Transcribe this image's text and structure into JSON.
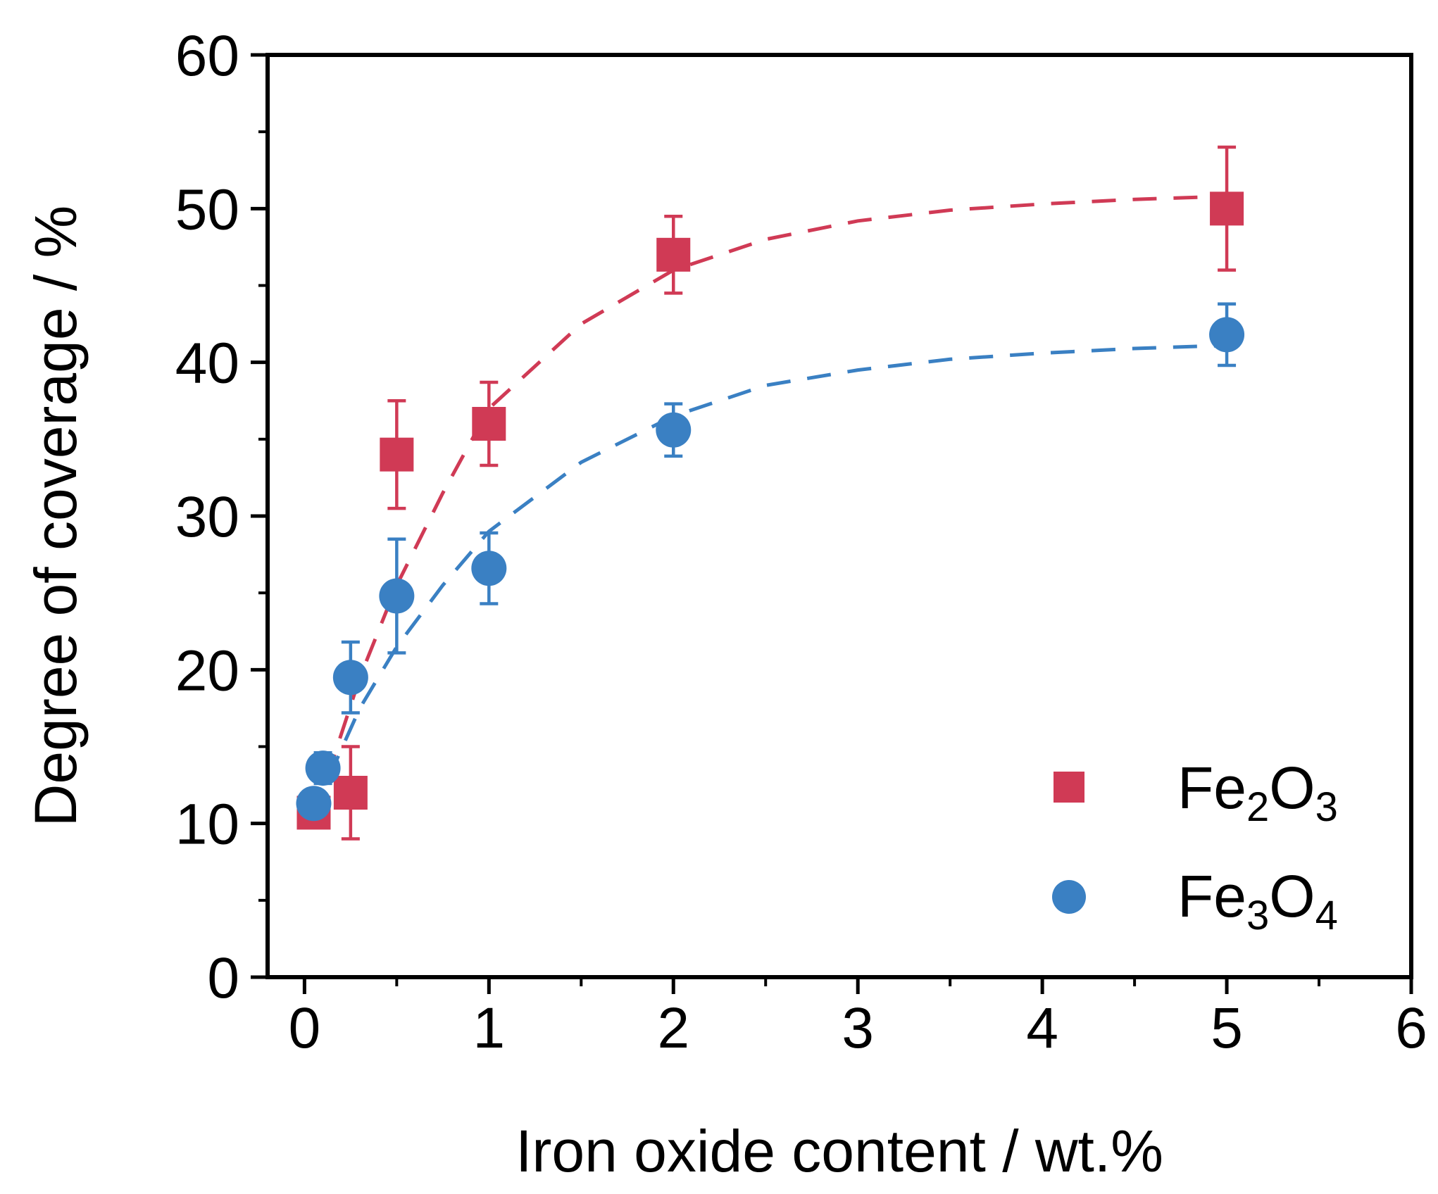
{
  "chart_data": {
    "type": "scatter",
    "title": "",
    "xlabel": "Iron oxide content / wt.%",
    "ylabel": "Degree of coverage / %",
    "xlim": [
      -0.2,
      6
    ],
    "ylim": [
      0,
      60
    ],
    "xticks": [
      0,
      1,
      2,
      3,
      4,
      5,
      6
    ],
    "yticks": [
      0,
      10,
      20,
      30,
      40,
      50,
      60
    ],
    "xtick_labels": [
      "0",
      "1",
      "2",
      "3",
      "4",
      "5",
      "6"
    ],
    "ytick_labels": [
      "0",
      "10",
      "20",
      "30",
      "40",
      "50",
      "60"
    ],
    "legend_position": "bottom-right",
    "series": [
      {
        "name": "Fe2O3",
        "legend": {
          "base1": "Fe",
          "sub1": "2",
          "base2": "O",
          "sub2": "3"
        },
        "marker": "square",
        "color": "#d03a55",
        "x": [
          0.05,
          0.25,
          0.5,
          1,
          2,
          5
        ],
        "y": [
          10.7,
          12.0,
          34.0,
          36.0,
          47.0,
          50.0
        ],
        "err": [
          0.6,
          3.0,
          3.5,
          2.7,
          2.5,
          4.0
        ],
        "fit_x": [
          0.05,
          0.15,
          0.3,
          0.5,
          0.75,
          1,
          1.5,
          2,
          2.5,
          3,
          3.5,
          4,
          4.5,
          5
        ],
        "fit_y": [
          10.5,
          14.0,
          19.5,
          25.5,
          31.5,
          37.0,
          42.5,
          46.0,
          48.0,
          49.2,
          49.9,
          50.3,
          50.6,
          50.8
        ]
      },
      {
        "name": "Fe3O4",
        "legend": {
          "base1": "Fe",
          "sub1": "3",
          "base2": "O",
          "sub2": "4"
        },
        "marker": "circle",
        "color": "#3a80c3",
        "x": [
          0.05,
          0.1,
          0.25,
          0.5,
          1,
          2,
          5
        ],
        "y": [
          11.3,
          13.6,
          19.5,
          24.8,
          26.6,
          35.6,
          41.8
        ],
        "err": [
          0.8,
          1.0,
          2.3,
          3.7,
          2.3,
          1.7,
          2.0
        ],
        "fit_x": [
          0.05,
          0.15,
          0.3,
          0.5,
          0.75,
          1,
          1.5,
          2,
          2.5,
          3,
          3.5,
          4,
          4.5,
          5
        ],
        "fit_y": [
          10.5,
          13.5,
          17.5,
          21.5,
          25.5,
          29.0,
          33.5,
          36.5,
          38.5,
          39.5,
          40.2,
          40.6,
          40.9,
          41.1
        ]
      }
    ]
  }
}
